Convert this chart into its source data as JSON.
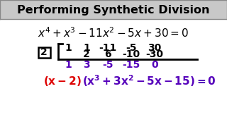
{
  "title": "Performing Synthetic Division",
  "title_color": "#000000",
  "title_bg": "#c8c8c8",
  "bg_color": "#ffffff",
  "divisor": "2",
  "row1": [
    "1",
    "1",
    "-11",
    "-5",
    "30"
  ],
  "row2": [
    "2",
    "6",
    "-10",
    "-30"
  ],
  "row3": [
    "1",
    "3",
    "-5",
    "-15",
    "0"
  ],
  "row1_color": "#000000",
  "row2_color": "#000000",
  "row3_color": "#5500bb",
  "red_color": "#dd0000",
  "purple_color": "#5500bb"
}
